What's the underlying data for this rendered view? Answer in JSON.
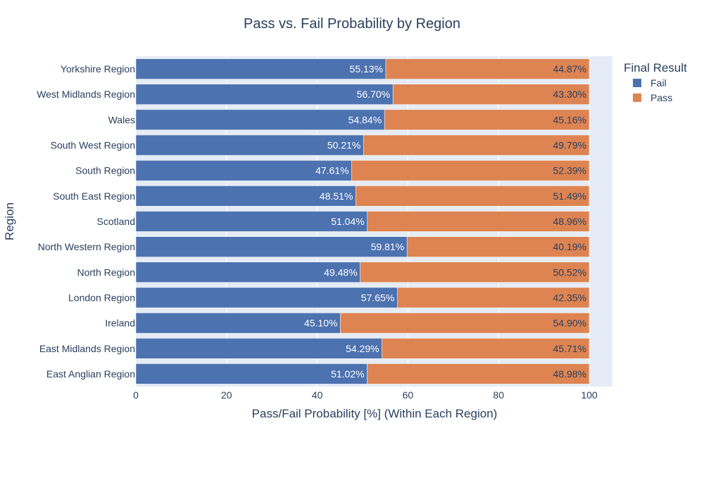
{
  "chart_data": {
    "type": "bar",
    "orientation": "horizontal",
    "stacked": true,
    "title": "Pass vs. Fail Probability by Region",
    "xlabel": "Pass/Fail Probability [%] (Within Each Region)",
    "ylabel": "Region",
    "xlim": [
      0,
      100
    ],
    "x_ticks": [
      0,
      20,
      40,
      60,
      80,
      100
    ],
    "grid": true,
    "legend": {
      "title": "Final Result",
      "placement": "top-right"
    },
    "categories": [
      "Yorkshire Region",
      "West Midlands Region",
      "Wales",
      "South West Region",
      "South Region",
      "South East Region",
      "Scotland",
      "North Western Region",
      "North Region",
      "London Region",
      "Ireland",
      "East Midlands Region",
      "East Anglian Region"
    ],
    "series": [
      {
        "name": "Fail",
        "color": "#4c72b0",
        "values": [
          55.13,
          56.7,
          54.84,
          50.21,
          47.61,
          48.51,
          51.04,
          59.81,
          49.48,
          57.65,
          45.1,
          54.29,
          51.02
        ],
        "labels": [
          "55.13%",
          "56.70%",
          "54.84%",
          "50.21%",
          "47.61%",
          "48.51%",
          "51.04%",
          "59.81%",
          "49.48%",
          "57.65%",
          "45.10%",
          "54.29%",
          "51.02%"
        ]
      },
      {
        "name": "Pass",
        "color": "#dd8452",
        "values": [
          44.87,
          43.3,
          45.16,
          49.79,
          52.39,
          51.49,
          48.96,
          40.19,
          50.52,
          42.35,
          54.9,
          45.71,
          48.98
        ],
        "labels": [
          "44.87%",
          "43.30%",
          "45.16%",
          "49.79%",
          "52.39%",
          "51.49%",
          "48.96%",
          "40.19%",
          "50.52%",
          "42.35%",
          "54.90%",
          "45.71%",
          "48.98%"
        ]
      }
    ]
  }
}
